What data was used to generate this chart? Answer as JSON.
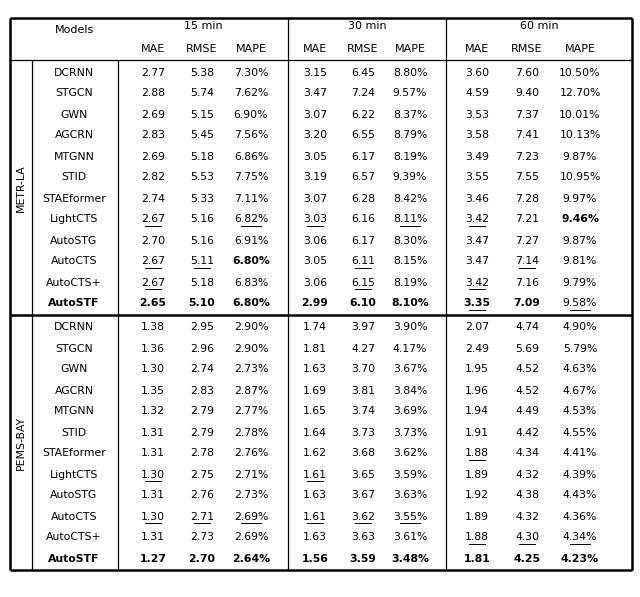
{
  "section1_label": "METR-LA",
  "section2_label": "PEMS-BAY",
  "section1_rows": [
    [
      "DCRNN",
      "2.77",
      "5.38",
      "7.30%",
      "3.15",
      "6.45",
      "8.80%",
      "3.60",
      "7.60",
      "10.50%"
    ],
    [
      "STGCN",
      "2.88",
      "5.74",
      "7.62%",
      "3.47",
      "7.24",
      "9.57%",
      "4.59",
      "9.40",
      "12.70%"
    ],
    [
      "GWN",
      "2.69",
      "5.15",
      "6.90%",
      "3.07",
      "6.22",
      "8.37%",
      "3.53",
      "7.37",
      "10.01%"
    ],
    [
      "AGCRN",
      "2.83",
      "5.45",
      "7.56%",
      "3.20",
      "6.55",
      "8.79%",
      "3.58",
      "7.41",
      "10.13%"
    ],
    [
      "MTGNN",
      "2.69",
      "5.18",
      "6.86%",
      "3.05",
      "6.17",
      "8.19%",
      "3.49",
      "7.23",
      "9.87%"
    ],
    [
      "STID",
      "2.82",
      "5.53",
      "7.75%",
      "3.19",
      "6.57",
      "9.39%",
      "3.55",
      "7.55",
      "10.95%"
    ],
    [
      "STAEformer",
      "2.74",
      "5.33",
      "7.11%",
      "3.07",
      "6.28",
      "8.42%",
      "3.46",
      "7.28",
      "9.97%"
    ],
    [
      "LightCTS",
      "2.67",
      "5.16",
      "6.82%",
      "3.03",
      "6.16",
      "8.11%",
      "3.42",
      "7.21",
      "9.46%"
    ],
    [
      "AutoSTG",
      "2.70",
      "5.16",
      "6.91%",
      "3.06",
      "6.17",
      "8.30%",
      "3.47",
      "7.27",
      "9.87%"
    ],
    [
      "AutoCTS",
      "2.67",
      "5.11",
      "6.80%",
      "3.05",
      "6.11",
      "8.15%",
      "3.47",
      "7.14",
      "9.81%"
    ],
    [
      "AutoCTS+",
      "2.67",
      "5.18",
      "6.83%",
      "3.06",
      "6.15",
      "8.19%",
      "3.42",
      "7.16",
      "9.79%"
    ],
    [
      "AutoSTF",
      "2.65",
      "5.10",
      "6.80%",
      "2.99",
      "6.10",
      "8.10%",
      "3.35",
      "7.09",
      "9.58%"
    ]
  ],
  "section2_rows": [
    [
      "DCRNN",
      "1.38",
      "2.95",
      "2.90%",
      "1.74",
      "3.97",
      "3.90%",
      "2.07",
      "4.74",
      "4.90%"
    ],
    [
      "STGCN",
      "1.36",
      "2.96",
      "2.90%",
      "1.81",
      "4.27",
      "4.17%",
      "2.49",
      "5.69",
      "5.79%"
    ],
    [
      "GWN",
      "1.30",
      "2.74",
      "2.73%",
      "1.63",
      "3.70",
      "3.67%",
      "1.95",
      "4.52",
      "4.63%"
    ],
    [
      "AGCRN",
      "1.35",
      "2.83",
      "2.87%",
      "1.69",
      "3.81",
      "3.84%",
      "1.96",
      "4.52",
      "4.67%"
    ],
    [
      "MTGNN",
      "1.32",
      "2.79",
      "2.77%",
      "1.65",
      "3.74",
      "3.69%",
      "1.94",
      "4.49",
      "4.53%"
    ],
    [
      "STID",
      "1.31",
      "2.79",
      "2.78%",
      "1.64",
      "3.73",
      "3.73%",
      "1.91",
      "4.42",
      "4.55%"
    ],
    [
      "STAEformer",
      "1.31",
      "2.78",
      "2.76%",
      "1.62",
      "3.68",
      "3.62%",
      "1.88",
      "4.34",
      "4.41%"
    ],
    [
      "LightCTS",
      "1.30",
      "2.75",
      "2.71%",
      "1.61",
      "3.65",
      "3.59%",
      "1.89",
      "4.32",
      "4.39%"
    ],
    [
      "AutoSTG",
      "1.31",
      "2.76",
      "2.73%",
      "1.63",
      "3.67",
      "3.63%",
      "1.92",
      "4.38",
      "4.43%"
    ],
    [
      "AutoCTS",
      "1.30",
      "2.71",
      "2.69%",
      "1.61",
      "3.62",
      "3.55%",
      "1.89",
      "4.32",
      "4.36%"
    ],
    [
      "AutoCTS+",
      "1.31",
      "2.73",
      "2.69%",
      "1.63",
      "3.63",
      "3.61%",
      "1.88",
      "4.30",
      "4.34%"
    ],
    [
      "AutoSTF",
      "1.27",
      "2.70",
      "2.64%",
      "1.56",
      "3.59",
      "3.48%",
      "1.81",
      "4.25",
      "4.23%"
    ]
  ],
  "s1_underline": {
    "LightCTS": [
      1,
      0,
      1,
      1,
      0,
      1,
      1,
      0,
      0
    ],
    "AutoCTS": [
      1,
      1,
      0,
      0,
      1,
      0,
      0,
      1,
      0
    ],
    "AutoCTS+": [
      1,
      0,
      0,
      0,
      1,
      0,
      1,
      0,
      0
    ],
    "AutoSTF": [
      0,
      0,
      0,
      0,
      0,
      0,
      1,
      0,
      1
    ]
  },
  "s1_bold": {
    "AutoCTS": [
      0,
      0,
      1,
      0,
      0,
      0,
      0,
      0,
      0
    ],
    "LightCTS": [
      0,
      0,
      0,
      0,
      0,
      0,
      0,
      0,
      1
    ],
    "AutoSTF": [
      1,
      1,
      1,
      1,
      1,
      1,
      1,
      1,
      0
    ]
  },
  "s2_underline": {
    "STAEformer": [
      0,
      0,
      0,
      0,
      0,
      0,
      1,
      0,
      0
    ],
    "LightCTS": [
      1,
      0,
      0,
      1,
      0,
      0,
      0,
      0,
      0
    ],
    "AutoCTS": [
      1,
      1,
      1,
      1,
      1,
      1,
      0,
      0,
      0
    ],
    "AutoCTS+": [
      0,
      0,
      0,
      0,
      0,
      0,
      1,
      1,
      1
    ],
    "AutoSTF": [
      0,
      0,
      0,
      0,
      0,
      0,
      0,
      0,
      0
    ]
  },
  "s2_bold": {
    "AutoSTF": [
      1,
      1,
      1,
      1,
      1,
      1,
      1,
      1,
      1
    ]
  }
}
